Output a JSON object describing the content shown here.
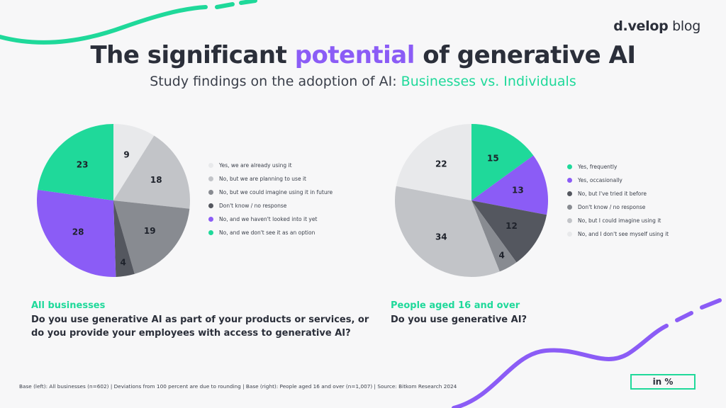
{
  "brand": {
    "name_bold": "d.velop",
    "name_rest": " blog"
  },
  "title": {
    "part1": "The significant ",
    "highlight": "potential",
    "part2": " of generative AI"
  },
  "subtitle": {
    "part1": "Study findings on the adoption of AI: ",
    "highlight": "Businesses vs. Individuals"
  },
  "chart_data": [
    {
      "type": "pie",
      "title": "All businesses",
      "question": "Do you use generative AI as part of your products or services, or do you provide your employees with access to generative AI?",
      "categories": [
        "Yes, we are already using it",
        "No, but we are planning to use it",
        "No, but we could imagine using it in future",
        "Don't know / no response",
        "No, and we haven't looked into it yet",
        "No, and we don't see it as an option"
      ],
      "values": [
        9,
        18,
        19,
        4,
        28,
        23
      ],
      "colors": [
        "#e8e9eb",
        "#c2c4c8",
        "#888b91",
        "#54575f",
        "#8b5cf6",
        "#1fd99a"
      ]
    },
    {
      "type": "pie",
      "title": "People aged 16 and over",
      "question": "Do you use generative AI?",
      "categories": [
        "Yes, frequently",
        "Yes, occasionally",
        "No, but I've tried it before",
        "Don't know / no response",
        "No, but I could imagine using it",
        "No, and I don't see myself using it"
      ],
      "values": [
        15,
        13,
        12,
        4,
        34,
        22
      ],
      "colors": [
        "#1fd99a",
        "#8b5cf6",
        "#54575f",
        "#888b91",
        "#c2c4c8",
        "#e8e9eb"
      ]
    }
  ],
  "left": {
    "label": "All businesses",
    "q_line1": "Do you use generative AI as part of your products or services, or",
    "q_line2": "do you provide your employees with access to generative AI?"
  },
  "right": {
    "label": "People aged 16 and over",
    "q_line1": "Do you use generative AI?"
  },
  "footnote": "Base (left): All businesses (n=602) | Deviations from 100 percent are due to rounding | Base (right): People aged 16 and over (n=1,007) | Source: Bitkom Research 2024",
  "unit_badge": "in %"
}
